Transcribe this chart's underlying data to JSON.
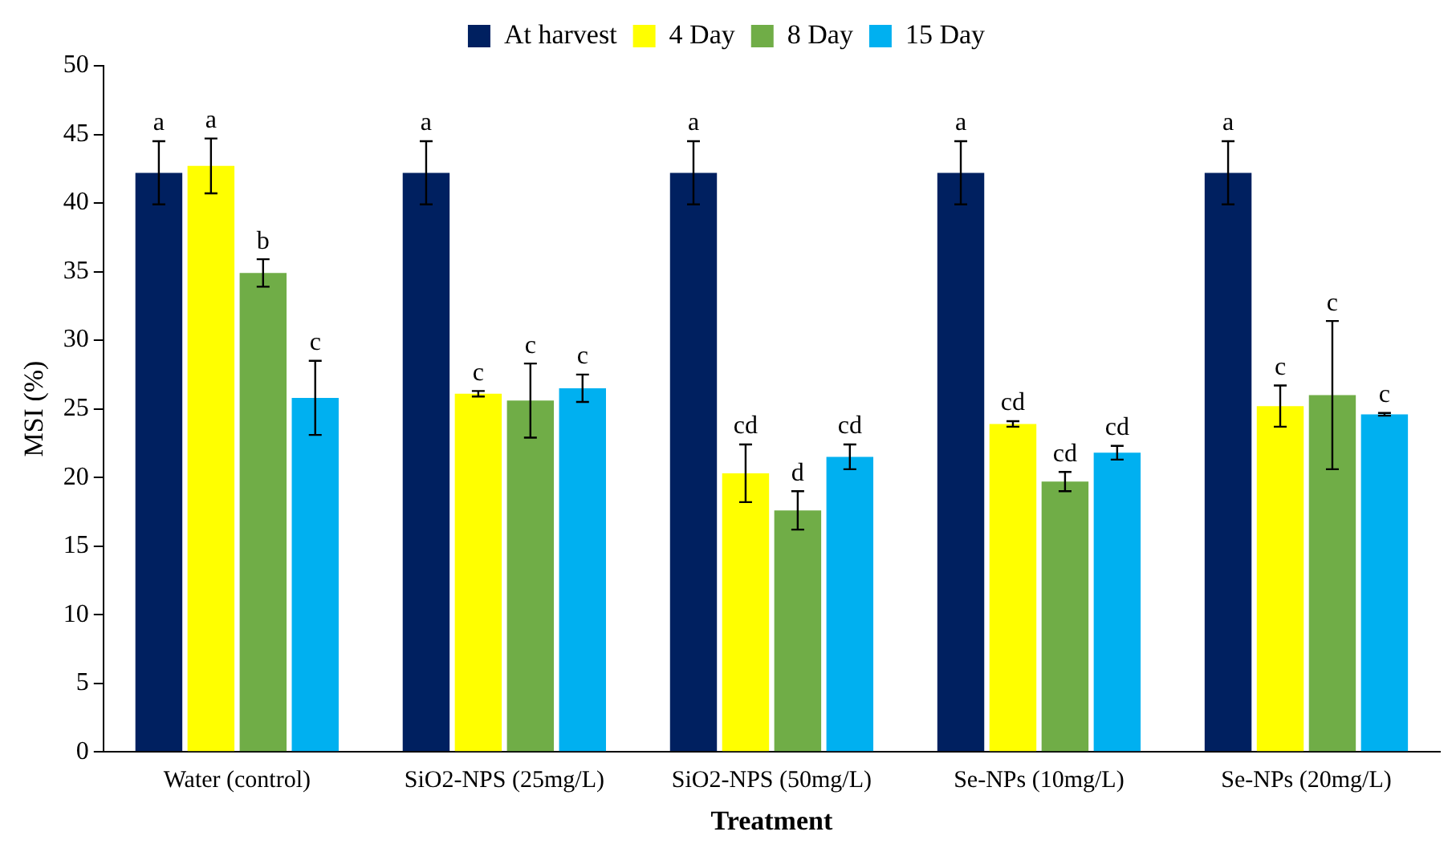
{
  "chart_data": {
    "type": "bar",
    "xlabel": "Treatment",
    "ylabel": "MSI (%)",
    "categories": [
      "Water (control)",
      "SiO2-NPS (25mg/L)",
      "SiO2-NPS (50mg/L)",
      "Se-NPs (10mg/L)",
      "Se-NPs (20mg/L)"
    ],
    "series": [
      {
        "name": "At harvest",
        "color": "#002060",
        "values": [
          42.2,
          42.2,
          42.2,
          42.2,
          42.2
        ],
        "errors": [
          2.3,
          2.3,
          2.3,
          2.3,
          2.3
        ],
        "value_labels": [
          "a",
          "a",
          "a",
          "a",
          "a"
        ]
      },
      {
        "name": "4 Day",
        "color": "#ffff00",
        "values": [
          42.7,
          26.1,
          20.3,
          23.9,
          25.2
        ],
        "errors": [
          2.0,
          0.2,
          2.1,
          0.2,
          1.5
        ],
        "value_labels": [
          "a",
          "c",
          "cd",
          "cd",
          "c"
        ]
      },
      {
        "name": "8 Day",
        "color": "#70ad47",
        "values": [
          34.9,
          25.6,
          17.6,
          19.7,
          26.0
        ],
        "errors": [
          1.0,
          2.7,
          1.4,
          0.7,
          5.4
        ],
        "value_labels": [
          "b",
          "c",
          "d",
          "cd",
          "c"
        ]
      },
      {
        "name": "15 Day",
        "color": "#00b0f0",
        "values": [
          25.8,
          26.5,
          21.5,
          21.8,
          24.6
        ],
        "errors": [
          2.7,
          1.0,
          0.9,
          0.5,
          0.1
        ],
        "value_labels": [
          "c",
          "c",
          "cd",
          "cd",
          "c"
        ]
      }
    ],
    "ylim": [
      0,
      50
    ],
    "yticks": [
      0,
      5,
      10,
      15,
      20,
      25,
      30,
      35,
      40,
      45,
      50
    ],
    "grid": false,
    "legend": "top"
  }
}
